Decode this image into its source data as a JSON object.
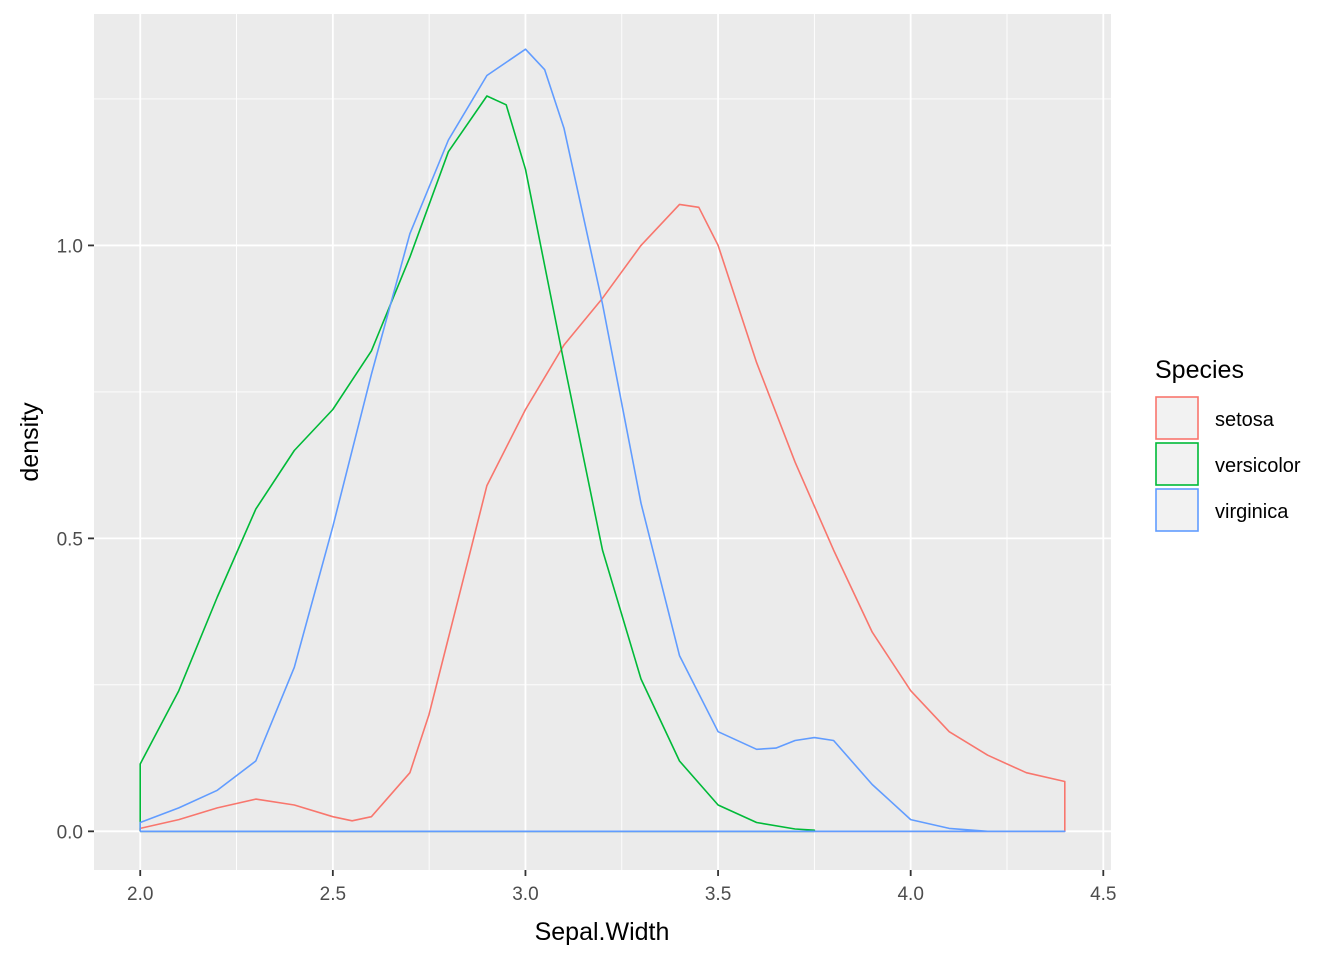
{
  "chart_data": {
    "type": "line",
    "title": "",
    "xlabel": "Sepal.Width",
    "ylabel": "density",
    "xlim": [
      1.88,
      4.52
    ],
    "ylim": [
      -0.066,
      1.395
    ],
    "x_ticks": [
      2.0,
      2.5,
      3.0,
      3.5,
      4.0,
      4.5
    ],
    "x_tick_labels": [
      "2.0",
      "2.5",
      "3.0",
      "3.5",
      "4.0",
      "4.5"
    ],
    "y_ticks": [
      0.0,
      0.5,
      1.0
    ],
    "y_tick_labels": [
      "0.0",
      "0.5",
      "1.0"
    ],
    "grid": true,
    "legend_position": "right",
    "legend_title": "Species",
    "colors": {
      "setosa": "#F8766D",
      "versicolor": "#00BA38",
      "virginica": "#619CFF",
      "panel_bg": "#EBEBEB",
      "grid_major": "#FFFFFF",
      "legend_key_bg": "#F2F2F2"
    },
    "series": [
      {
        "name": "setosa",
        "color": "#F8766D",
        "x": [
          2.0,
          2.1,
          2.2,
          2.3,
          2.4,
          2.5,
          2.55,
          2.6,
          2.7,
          2.75,
          2.8,
          2.85,
          2.9,
          3.0,
          3.1,
          3.2,
          3.3,
          3.4,
          3.45,
          3.5,
          3.6,
          3.7,
          3.8,
          3.9,
          4.0,
          4.1,
          4.2,
          4.3,
          4.4
        ],
        "values": [
          0.005,
          0.02,
          0.04,
          0.055,
          0.045,
          0.025,
          0.018,
          0.025,
          0.1,
          0.2,
          0.33,
          0.46,
          0.59,
          0.72,
          0.83,
          0.91,
          1.0,
          1.07,
          1.065,
          1.0,
          0.8,
          0.63,
          0.48,
          0.34,
          0.24,
          0.17,
          0.13,
          0.1,
          0.085
        ]
      },
      {
        "name": "versicolor",
        "color": "#00BA38",
        "x": [
          2.0,
          2.1,
          2.2,
          2.3,
          2.4,
          2.5,
          2.6,
          2.7,
          2.8,
          2.9,
          2.95,
          3.0,
          3.1,
          3.2,
          3.3,
          3.4,
          3.5,
          3.6,
          3.7,
          3.75
        ],
        "values": [
          0.115,
          0.24,
          0.4,
          0.55,
          0.65,
          0.72,
          0.82,
          0.98,
          1.16,
          1.255,
          1.24,
          1.13,
          0.8,
          0.48,
          0.26,
          0.12,
          0.045,
          0.015,
          0.004,
          0.002
        ]
      },
      {
        "name": "virginica",
        "color": "#619CFF",
        "x": [
          2.0,
          2.1,
          2.2,
          2.3,
          2.4,
          2.5,
          2.6,
          2.7,
          2.8,
          2.9,
          3.0,
          3.05,
          3.1,
          3.2,
          3.3,
          3.4,
          3.5,
          3.6,
          3.65,
          3.7,
          3.75,
          3.8,
          3.9,
          4.0,
          4.1,
          4.2,
          4.4
        ],
        "values": [
          0.015,
          0.04,
          0.07,
          0.12,
          0.28,
          0.52,
          0.78,
          1.02,
          1.18,
          1.29,
          1.335,
          1.3,
          1.2,
          0.9,
          0.56,
          0.3,
          0.17,
          0.14,
          0.142,
          0.155,
          0.16,
          0.155,
          0.08,
          0.02,
          0.005,
          0.0,
          0.0
        ]
      }
    ]
  }
}
